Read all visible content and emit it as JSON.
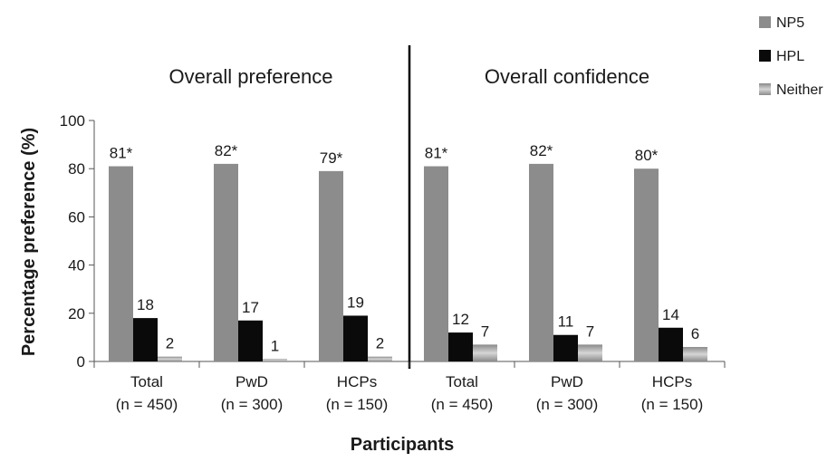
{
  "chart_data": {
    "type": "bar",
    "ylabel": "Percentage preference (%)",
    "xlabel": "Participants",
    "ylim": [
      0,
      100
    ],
    "yticks": [
      0,
      20,
      40,
      60,
      80,
      100
    ],
    "grid": false,
    "legend_position": "top-right",
    "legend": [
      "NP5",
      "HPL",
      "Neither"
    ],
    "colors": {
      "NP5": "#8c8c8c",
      "HPL": "#0a0a0a",
      "Neither": "#a8a8a8"
    },
    "panels": [
      {
        "title": "Overall preference",
        "categories": [
          {
            "name": "Total",
            "n": "(n = 450)"
          },
          {
            "name": "PwD",
            "n": "(n = 300)"
          },
          {
            "name": "HCPs",
            "n": "(n = 150)"
          }
        ],
        "series": [
          {
            "name": "NP5",
            "values": [
              81,
              82,
              79
            ],
            "labels": [
              "81*",
              "82*",
              "79*"
            ]
          },
          {
            "name": "HPL",
            "values": [
              18,
              17,
              19
            ],
            "labels": [
              "18",
              "17",
              "19"
            ]
          },
          {
            "name": "Neither",
            "values": [
              2,
              1,
              2
            ],
            "labels": [
              "2",
              "1",
              "2"
            ]
          }
        ]
      },
      {
        "title": "Overall confidence",
        "categories": [
          {
            "name": "Total",
            "n": "(n = 450)"
          },
          {
            "name": "PwD",
            "n": "(n = 300)"
          },
          {
            "name": "HCPs",
            "n": "(n = 150)"
          }
        ],
        "series": [
          {
            "name": "NP5",
            "values": [
              81,
              82,
              80
            ],
            "labels": [
              "81*",
              "82*",
              "80*"
            ]
          },
          {
            "name": "HPL",
            "values": [
              12,
              11,
              14
            ],
            "labels": [
              "12",
              "11",
              "14"
            ]
          },
          {
            "name": "Neither",
            "values": [
              7,
              7,
              6
            ],
            "labels": [
              "7",
              "7",
              "6"
            ]
          }
        ]
      }
    ]
  }
}
